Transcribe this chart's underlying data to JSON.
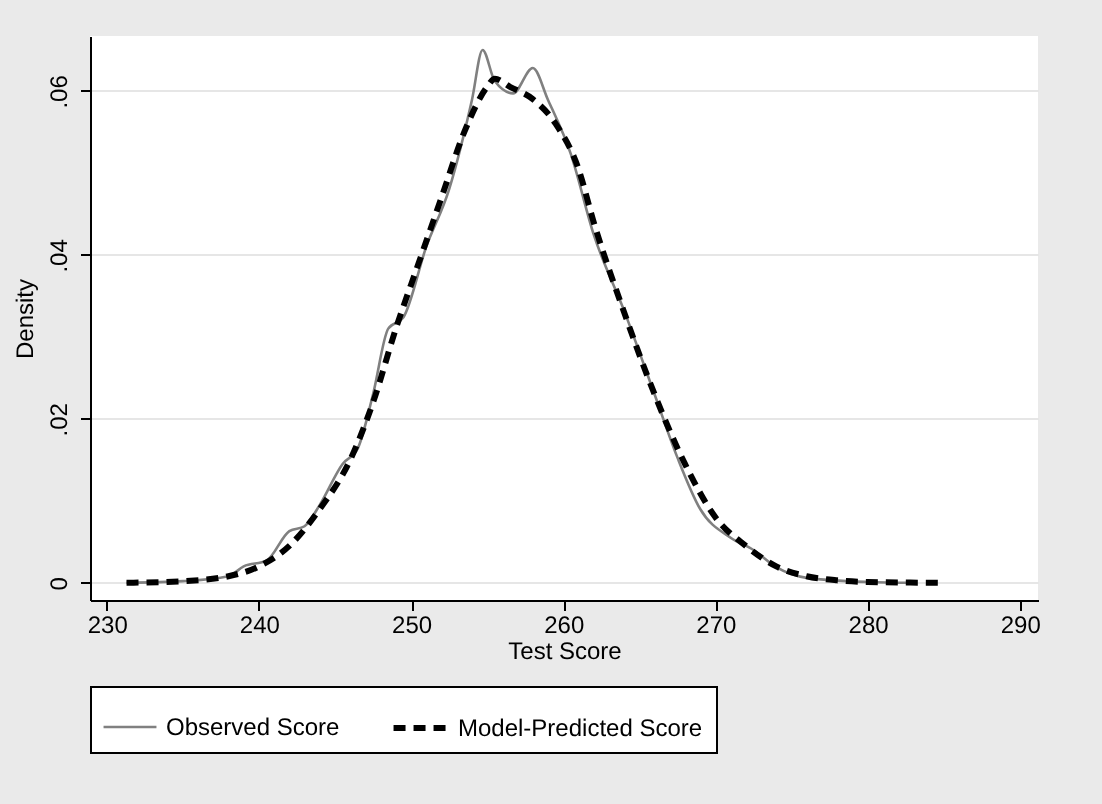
{
  "chart_data": {
    "type": "line",
    "xlabel": "Test Score",
    "ylabel": "Density",
    "xlim": [
      228.9,
      291.2
    ],
    "xticks": [
      230,
      240,
      250,
      260,
      270,
      280,
      290
    ],
    "ylim": [
      -0.0021,
      0.0667
    ],
    "yticks": [
      {
        "value": 0,
        "label": "0"
      },
      {
        "value": 0.02,
        "label": ".02"
      },
      {
        "value": 0.04,
        "label": ".04"
      },
      {
        "value": 0.06,
        "label": ".06"
      }
    ],
    "grid": "y",
    "legend": "bottom",
    "series": [
      {
        "name": "Observed Score",
        "color": "#808080",
        "line_style": "solid",
        "x": [
          231.3,
          235,
          238,
          239,
          240.5,
          242,
          243,
          244,
          245.5,
          246.5,
          247.5,
          248.5,
          249.5,
          251,
          252.5,
          254,
          254.7,
          255.5,
          256.7,
          258,
          259,
          260.5,
          262,
          264,
          266,
          267.5,
          269,
          271,
          272.5,
          274,
          276,
          280,
          283
        ],
        "values": [
          0,
          0.0002,
          0.0008,
          0.002,
          0.0027,
          0.0063,
          0.0069,
          0.0095,
          0.0145,
          0.0164,
          0.023,
          0.031,
          0.0324,
          0.041,
          0.048,
          0.0589,
          0.065,
          0.0612,
          0.0597,
          0.0628,
          0.0589,
          0.0523,
          0.0425,
          0.0332,
          0.023,
          0.0153,
          0.009,
          0.0055,
          0.004,
          0.0019,
          0.0006,
          0.0001,
          0
        ]
      },
      {
        "name": "Model-Predicted Score",
        "color": "#000000",
        "line_style": "dashed",
        "x": [
          231.3,
          235,
          238,
          240,
          242,
          244,
          246,
          247.5,
          249,
          250.5,
          252,
          253.5,
          255,
          255.5,
          256.5,
          258,
          259.5,
          261,
          262,
          264,
          266,
          268,
          270,
          272,
          274,
          276,
          278,
          280,
          285
        ],
        "values": [
          0,
          0.0002,
          0.0008,
          0.002,
          0.0045,
          0.009,
          0.015,
          0.022,
          0.031,
          0.039,
          0.047,
          0.055,
          0.0605,
          0.0615,
          0.0605,
          0.059,
          0.056,
          0.0505,
          0.044,
          0.033,
          0.023,
          0.0145,
          0.008,
          0.0045,
          0.002,
          0.0008,
          0.0003,
          0.0001,
          0
        ]
      }
    ]
  }
}
